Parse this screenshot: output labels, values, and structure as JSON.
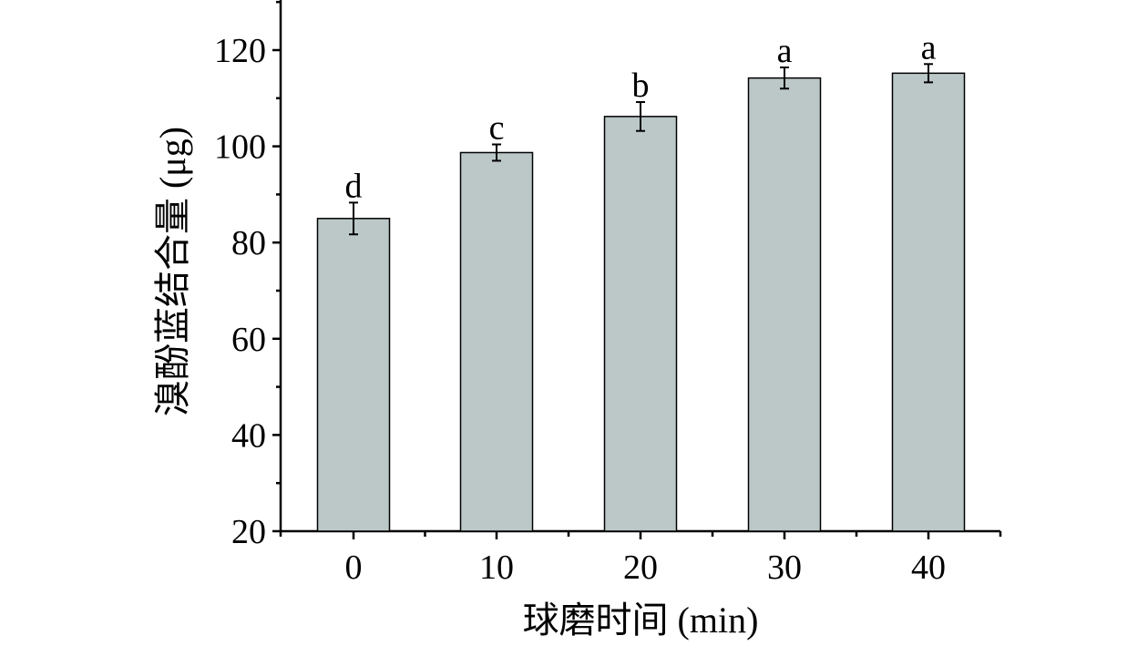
{
  "chart_data": {
    "type": "bar",
    "xlabel": "球磨时间 (min)",
    "ylabel": "溴酚蓝结合量 (μg)",
    "categories": [
      "0",
      "10",
      "20",
      "30",
      "40"
    ],
    "values": [
      85.0,
      98.7,
      106.2,
      114.2,
      115.2
    ],
    "errors": [
      3.3,
      1.7,
      3.0,
      2.2,
      1.9
    ],
    "significance_labels": [
      "d",
      "c",
      "b",
      "a",
      "a"
    ],
    "ylim": [
      20,
      130
    ],
    "yticks": [
      20,
      40,
      60,
      80,
      100,
      120
    ],
    "bar_color": "#bcc8c8",
    "grid": false,
    "legend": "none"
  }
}
